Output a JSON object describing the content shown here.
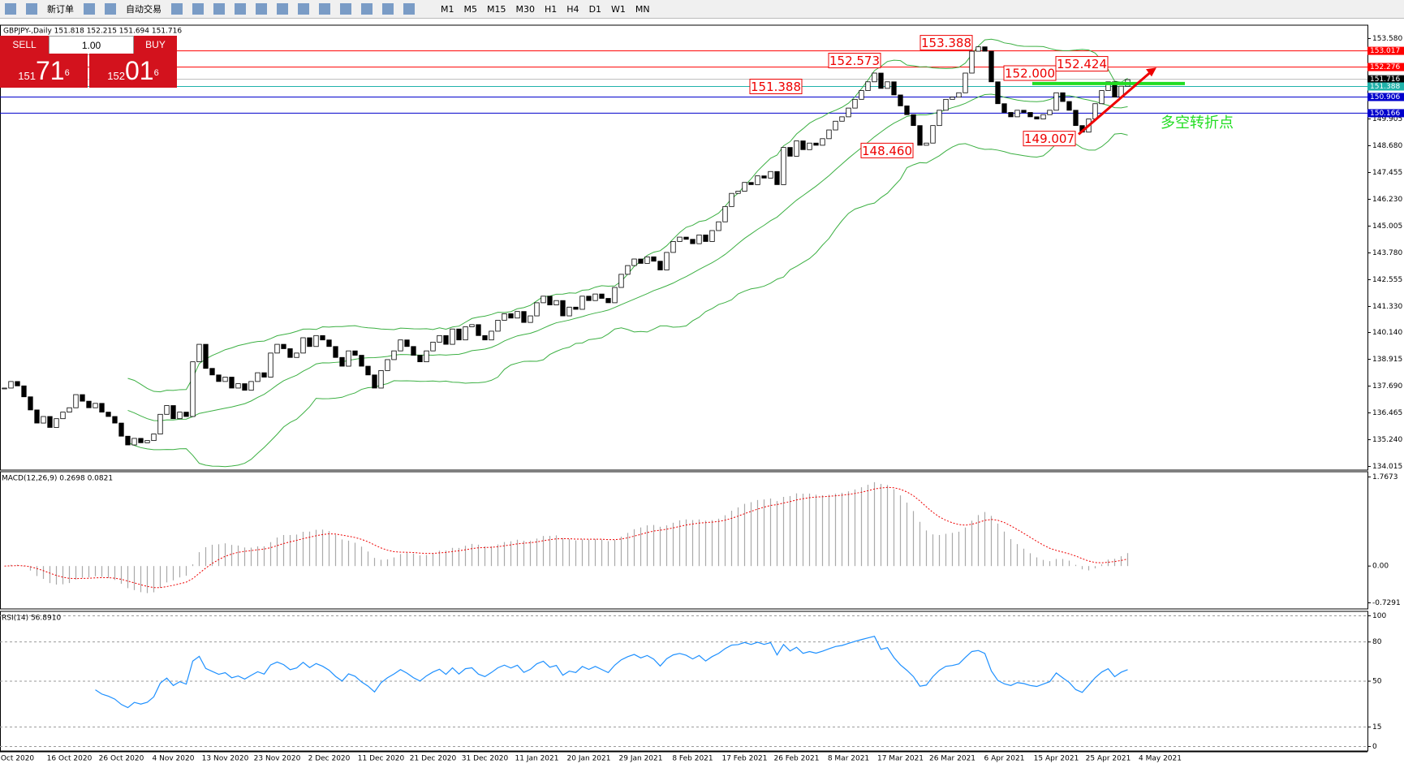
{
  "toolbar": {
    "buttons": [
      "新订单",
      "自动交易"
    ],
    "timeframes": [
      "M1",
      "M5",
      "M15",
      "M30",
      "H1",
      "H4",
      "D1",
      "W1",
      "MN"
    ]
  },
  "trade_panel": {
    "sell": "SELL",
    "buy": "BUY",
    "volume": "1.00",
    "bid": {
      "big": "151",
      "main": "71",
      "sup": "6"
    },
    "ask": {
      "big": "152",
      "main": "01",
      "sup": "6"
    }
  },
  "chart_data": {
    "type": "candlestick",
    "title": "GBPJPY-,Daily  151.818 152.215 151.694 151.716",
    "categories": [
      null,
      null,
      "Oct 2020",
      null,
      null,
      null,
      null,
      null,
      null,
      null,
      "16 Oct 2020",
      null,
      null,
      null,
      null,
      null,
      null,
      null,
      "26 Oct 2020",
      null,
      null,
      null,
      null,
      null,
      null,
      null,
      "4 Nov 2020",
      null,
      null,
      null,
      null,
      null,
      null,
      null,
      "13 Nov 2020",
      null,
      null,
      null,
      null,
      null,
      null,
      null,
      "23 Nov 2020",
      null,
      null,
      null,
      null,
      null,
      null,
      null,
      "2 Dec 2020",
      null,
      null,
      null,
      null,
      null,
      null,
      null,
      "11 Dec 2020",
      null,
      null,
      null,
      null,
      null,
      null,
      null,
      "21 Dec 2020",
      null,
      null,
      null,
      null,
      null,
      null,
      null,
      "31 Dec 2020",
      null,
      null,
      null,
      null,
      null,
      null,
      null,
      "11 Jan 2021",
      null,
      null,
      null,
      null,
      null,
      null,
      null,
      "20 Jan 2021",
      null,
      null,
      null,
      null,
      null,
      null,
      null,
      "29 Jan 2021",
      null,
      null,
      null,
      null,
      null,
      null,
      null,
      "8 Feb 2021",
      null,
      null,
      null,
      null,
      null,
      null,
      null,
      "17 Feb 2021",
      null,
      null,
      null,
      null,
      null,
      null,
      null,
      "26 Feb 2021",
      null,
      null,
      null,
      null,
      null,
      null,
      null,
      "8 Mar 2021",
      null,
      null,
      null,
      null,
      null,
      null,
      null,
      "17 Mar 2021",
      null,
      null,
      null,
      null,
      null,
      null,
      null,
      "26 Mar 2021",
      null,
      null,
      null,
      null,
      null,
      null,
      null,
      "6 Apr 2021",
      null,
      null,
      null,
      null,
      null,
      null,
      null,
      "15 Apr 2021",
      null,
      null,
      null,
      null,
      null,
      null,
      null,
      "25 Apr 2021",
      null,
      null,
      null,
      null,
      null,
      null,
      null,
      "4 May 2021",
      null
    ],
    "close": [
      137.6,
      137.9,
      137.7,
      137.2,
      136.6,
      136.0,
      136.3,
      135.8,
      136.2,
      136.5,
      136.7,
      137.3,
      137.0,
      136.7,
      136.9,
      136.5,
      136.3,
      136.0,
      135.4,
      135.0,
      135.3,
      135.1,
      135.2,
      135.5,
      136.4,
      136.8,
      136.2,
      136.5,
      136.3,
      138.8,
      139.6,
      138.5,
      138.2,
      137.9,
      138.1,
      137.6,
      137.8,
      137.5,
      137.9,
      138.3,
      138.1,
      139.2,
      139.6,
      139.4,
      139.0,
      139.2,
      139.9,
      139.5,
      140.0,
      139.8,
      139.5,
      139.0,
      138.6,
      139.3,
      139.1,
      138.6,
      138.2,
      137.6,
      138.4,
      138.9,
      139.3,
      139.8,
      139.5,
      139.1,
      138.8,
      139.3,
      139.7,
      140.0,
      139.6,
      140.3,
      139.8,
      140.4,
      140.5,
      140.0,
      139.8,
      140.2,
      140.7,
      141.0,
      140.8,
      141.1,
      140.6,
      140.9,
      141.5,
      141.8,
      141.4,
      141.6,
      140.9,
      141.3,
      141.2,
      141.8,
      141.6,
      141.9,
      141.7,
      141.5,
      142.2,
      142.8,
      143.2,
      143.5,
      143.3,
      143.6,
      143.4,
      143.0,
      143.8,
      144.3,
      144.5,
      144.4,
      144.2,
      144.6,
      144.3,
      144.8,
      145.2,
      145.9,
      146.5,
      146.6,
      147.0,
      146.9,
      147.3,
      147.2,
      147.5,
      146.9,
      148.6,
      148.2,
      148.9,
      148.5,
      148.8,
      148.7,
      149.0,
      149.4,
      149.8,
      150.0,
      150.4,
      150.8,
      151.2,
      151.6,
      152.0,
      151.3,
      151.6,
      151.0,
      150.5,
      150.1,
      149.6,
      148.7,
      148.8,
      149.6,
      150.3,
      150.8,
      150.9,
      151.1,
      152.0,
      153.0,
      153.2,
      153.0,
      151.6,
      150.6,
      150.2,
      150.0,
      150.3,
      150.2,
      150.0,
      149.9,
      150.1,
      150.3,
      151.1,
      150.7,
      150.3,
      149.6,
      149.3,
      149.9,
      150.6,
      151.2,
      151.6,
      150.9,
      151.4,
      151.7,
      null,
      null,
      null,
      null,
      null,
      null
    ],
    "ylim": [
      133.85,
      154.19
    ],
    "yticks": [
      {
        "value": 153.58,
        "label": "153.580"
      },
      149.905,
      {
        "value": 148.68,
        "label": "148.680"
      },
      147.455,
      {
        "value": 146.23,
        "label": "146.230"
      },
      145.005,
      {
        "value": 143.78,
        "label": "143.780"
      },
      142.555,
      {
        "value": 141.33,
        "label": "141.330"
      },
      {
        "value": 140.14,
        "label": "140.140"
      },
      138.915,
      {
        "value": 137.69,
        "label": "137.690"
      },
      136.465,
      {
        "value": 135.24,
        "label": "135.240"
      },
      134.015
    ],
    "levels": [
      153.017,
      152.276,
      151.716,
      151.388,
      150.906,
      150.166
    ],
    "level_colors": [
      "#ff0000",
      "#ff0000",
      "#000000",
      "#20b2aa",
      "#0000cc",
      "#0000cc"
    ],
    "annotations": [
      153.388,
      152.573,
      152.424,
      {
        "value": 152,
        "label": "152.000"
      },
      151.388,
      {
        "value": 148.46,
        "label": "148.460"
      },
      149.007
    ],
    "note": "多空转折点",
    "macd": {
      "label": "MACD(12,26,9) 0.2698 0.0821",
      "ylim": [
        -0.85,
        1.87
      ],
      "yticks": [
        1.7673,
        {
          "value": 0,
          "label": "0.00"
        },
        -0.7291
      ]
    },
    "rsi": {
      "label": "RSI(14) 56.8910",
      "ylim": [
        -3.4,
        103.4
      ],
      "yticks": [
        100,
        80,
        50,
        15,
        0
      ]
    }
  }
}
